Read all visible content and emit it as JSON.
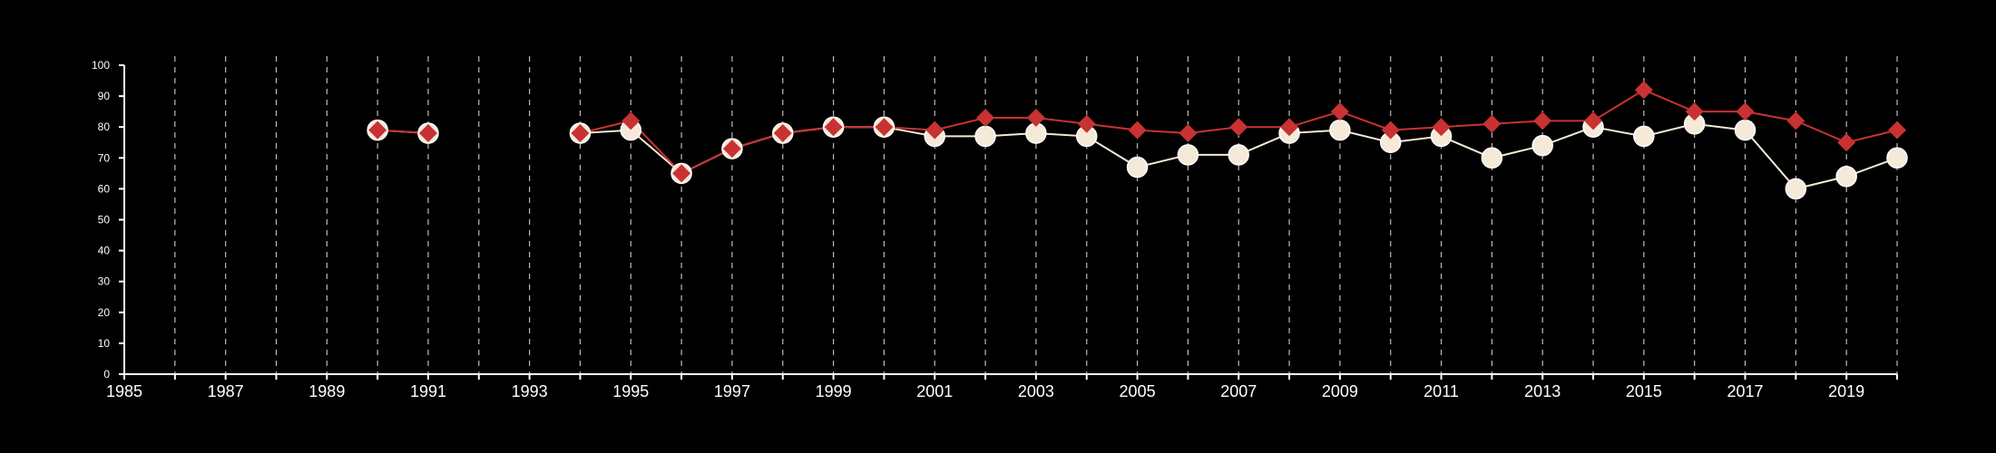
{
  "chart_data": {
    "type": "line",
    "title": "",
    "xlabel": "",
    "ylabel": "",
    "xlim": [
      1985,
      2020
    ],
    "ylim": [
      0,
      100
    ],
    "x_tick_labels": [
      "1985",
      "1987",
      "1989",
      "1991",
      "1993",
      "1995",
      "1997",
      "1999",
      "2001",
      "2003",
      "2005",
      "2007",
      "2009",
      "2011",
      "2013",
      "2015",
      "2017",
      "2019"
    ],
    "y_tick_labels": [
      "0",
      "10",
      "20",
      "30",
      "40",
      "50",
      "60",
      "70",
      "80",
      "90",
      "100"
    ],
    "vertical_dashed_grid": true,
    "legend": "none",
    "series": [
      {
        "marker": "circle",
        "color": "#f5ead8",
        "x": [
          1990,
          1991,
          1994,
          1995,
          1996,
          1997,
          1998,
          1999,
          2000,
          2001,
          2002,
          2003,
          2004,
          2005,
          2006,
          2007,
          2008,
          2009,
          2010,
          2011,
          2012,
          2013,
          2014,
          2015,
          2016,
          2017,
          2018,
          2019,
          2020
        ],
        "values": [
          79,
          78,
          78,
          79,
          65,
          73,
          78,
          80,
          80,
          77,
          77,
          78,
          77,
          67,
          71,
          71,
          78,
          79,
          75,
          77,
          70,
          74,
          80,
          77,
          81,
          79,
          60,
          64,
          70
        ]
      },
      {
        "marker": "diamond",
        "color": "#c83232",
        "x": [
          1990,
          1991,
          1994,
          1995,
          1996,
          1997,
          1998,
          1999,
          2000,
          2001,
          2002,
          2003,
          2004,
          2005,
          2006,
          2007,
          2008,
          2009,
          2010,
          2011,
          2012,
          2013,
          2014,
          2015,
          2016,
          2017,
          2018,
          2019,
          2020
        ],
        "values": [
          79,
          78,
          78,
          82,
          65,
          73,
          78,
          80,
          80,
          79,
          83,
          83,
          81,
          79,
          78,
          80,
          80,
          85,
          79,
          80,
          81,
          82,
          82,
          92,
          85,
          85,
          82,
          75,
          79
        ]
      }
    ]
  }
}
